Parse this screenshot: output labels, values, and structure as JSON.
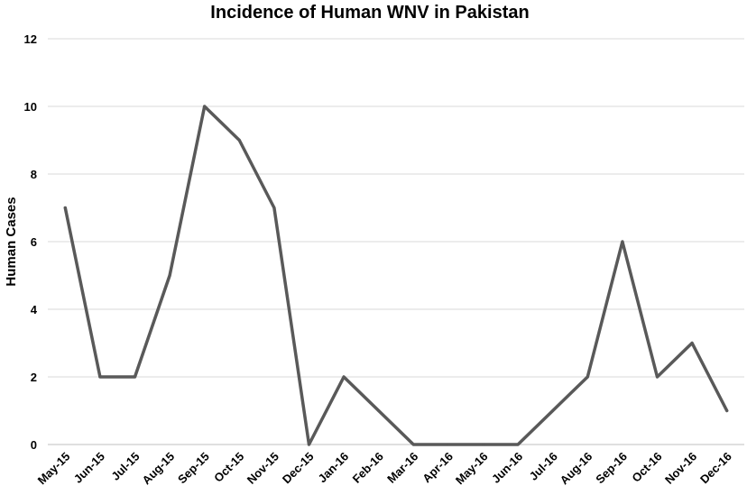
{
  "chart_data": {
    "type": "line",
    "title": "Incidence of Human WNV in Pakistan",
    "xlabel": "",
    "ylabel": "Human Cases",
    "ylim": [
      0,
      12
    ],
    "yticks": [
      "0",
      "2",
      "4",
      "6",
      "8",
      "10",
      "12"
    ],
    "grid": true,
    "legend": "none",
    "categories": [
      "May-15",
      "Jun-15",
      "Jul-15",
      "Aug-15",
      "Sep-15",
      "Oct-15",
      "Nov-15",
      "Dec-15",
      "Jan-16",
      "Feb-16",
      "Mar-16",
      "Apr-16",
      "May-16",
      "Jun-16",
      "Jul-16",
      "Aug-16",
      "Sep-16",
      "Oct-16",
      "Nov-16",
      "Dec-16"
    ],
    "series": [
      {
        "values": [
          7,
          2,
          2,
          5,
          10,
          9,
          7,
          0,
          2,
          1,
          0,
          0,
          0,
          0,
          1,
          2,
          6,
          2,
          3,
          1
        ],
        "color": "#595959"
      }
    ]
  }
}
